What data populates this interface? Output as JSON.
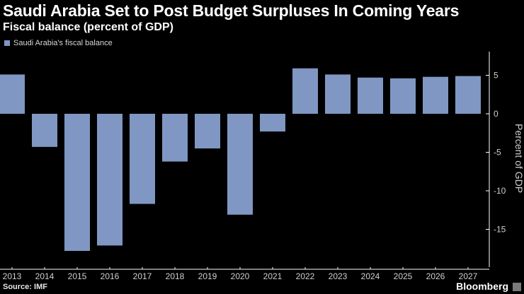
{
  "header": {
    "title": "Saudi Arabia Set to Post Budget Surpluses In Coming Years",
    "subtitle": "Fiscal balance (percent of GDP)"
  },
  "legend": {
    "label": "Saudi Arabia's fiscal balance",
    "color": "#7f97c2"
  },
  "footer": {
    "source": "Source: IMF",
    "brand": "Bloomberg",
    "brand_mark": ""
  },
  "colors": {
    "background": "#000000",
    "bar": "#7f97c2",
    "axis": "#ffffff",
    "text": "#ffffff"
  },
  "chart_data": {
    "type": "bar",
    "title": "Saudi Arabia Set to Post Budget Surpluses In Coming Years",
    "subtitle": "Fiscal balance (percent of GDP)",
    "xlabel": "",
    "ylabel": "Percent of GDP",
    "categories": [
      "2013",
      "2014",
      "2015",
      "2016",
      "2017",
      "2018",
      "2019",
      "2020",
      "2021",
      "2022",
      "2023",
      "2024",
      "2025",
      "2026",
      "2027"
    ],
    "series": [
      {
        "name": "Saudi Arabia's fiscal balance",
        "values": [
          5.1,
          -4.3,
          -17.8,
          -17.1,
          -11.7,
          -6.2,
          -4.5,
          -13.1,
          -2.3,
          5.9,
          5.1,
          4.7,
          4.6,
          4.8,
          4.9
        ]
      }
    ],
    "yticks": [
      5,
      0,
      -5,
      -10,
      -15
    ],
    "ytick_labels": [
      "5",
      "0",
      "-5",
      "-10",
      "-15"
    ],
    "ylim": [
      -20,
      8
    ],
    "grid": true,
    "legend_position": "top-left"
  }
}
